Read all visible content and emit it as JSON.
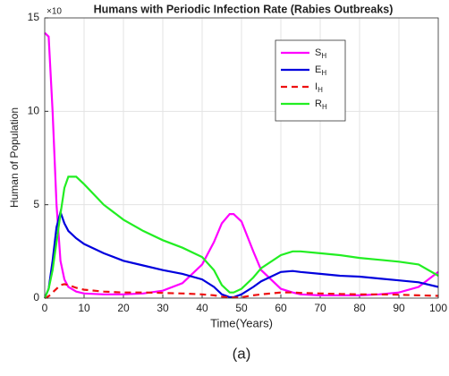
{
  "chart_data": {
    "type": "line",
    "title": "Humans with Periodic Infection Rate (Rabies Outbreaks)",
    "y_exponent_label": "×10",
    "xlabel": "Time(Years)",
    "ylabel": "Human of Population",
    "caption": "(a)",
    "x": [
      0,
      1,
      2,
      3,
      4,
      5,
      6,
      8,
      10,
      15,
      20,
      25,
      30,
      35,
      40,
      43,
      45,
      47,
      48,
      50,
      53,
      55,
      60,
      63,
      65,
      70,
      75,
      80,
      85,
      90,
      95,
      100
    ],
    "series": [
      {
        "name": "SH",
        "color": "#ff00ff",
        "dash": false,
        "values": [
          14.2,
          14,
          10,
          5,
          2,
          1,
          0.6,
          0.35,
          0.25,
          0.2,
          0.2,
          0.25,
          0.4,
          0.8,
          1.8,
          3.0,
          4.0,
          4.5,
          4.5,
          4.1,
          2.5,
          1.5,
          0.5,
          0.3,
          0.2,
          0.15,
          0.15,
          0.15,
          0.2,
          0.3,
          0.6,
          1.4
        ]
      },
      {
        "name": "EH",
        "color": "#0000dd",
        "dash": false,
        "values": [
          0,
          0.5,
          2,
          3.8,
          4.6,
          4.0,
          3.6,
          3.2,
          2.9,
          2.4,
          2.0,
          1.75,
          1.5,
          1.3,
          1.0,
          0.6,
          0.2,
          0.05,
          0.05,
          0.2,
          0.6,
          0.9,
          1.4,
          1.45,
          1.4,
          1.3,
          1.2,
          1.15,
          1.05,
          0.95,
          0.85,
          0.6
        ]
      },
      {
        "name": "IH",
        "color": "#ee1111",
        "dash": true,
        "values": [
          0,
          0.1,
          0.3,
          0.5,
          0.7,
          0.75,
          0.7,
          0.55,
          0.45,
          0.35,
          0.3,
          0.3,
          0.28,
          0.25,
          0.2,
          0.15,
          0.08,
          0.03,
          0.03,
          0.05,
          0.15,
          0.2,
          0.3,
          0.3,
          0.28,
          0.25,
          0.22,
          0.2,
          0.2,
          0.18,
          0.15,
          0.12
        ]
      },
      {
        "name": "RH",
        "color": "#22ee22",
        "dash": false,
        "values": [
          0,
          0.5,
          1.5,
          3,
          4.5,
          5.9,
          6.5,
          6.5,
          6.1,
          5.0,
          4.2,
          3.6,
          3.1,
          2.7,
          2.2,
          1.5,
          0.7,
          0.3,
          0.3,
          0.5,
          1.1,
          1.6,
          2.3,
          2.5,
          2.5,
          2.4,
          2.3,
          2.15,
          2.05,
          1.95,
          1.8,
          1.2
        ]
      }
    ],
    "xlim": [
      0,
      100
    ],
    "xticks": [
      0,
      10,
      20,
      30,
      40,
      50,
      60,
      70,
      80,
      90,
      100
    ],
    "ylim": [
      0,
      15
    ],
    "yticks": [
      0,
      5,
      10,
      15
    ],
    "grid": true,
    "legend": "upper right"
  }
}
